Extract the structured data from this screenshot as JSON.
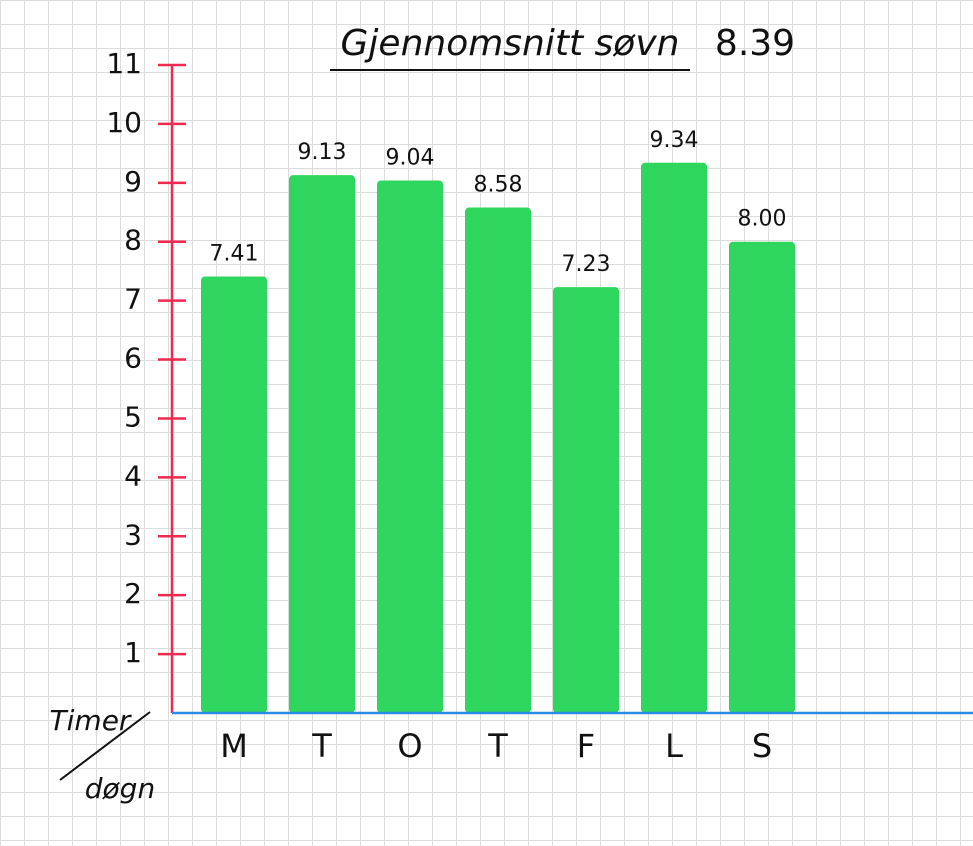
{
  "chart_data": {
    "type": "bar",
    "title": "Gjennomsnitt søvn",
    "title_value": "8.39",
    "unit_label": [
      "Timer",
      "døgn"
    ],
    "categories": [
      "M",
      "T",
      "O",
      "T",
      "F",
      "L",
      "S"
    ],
    "values": [
      7.41,
      9.13,
      9.04,
      8.58,
      7.23,
      9.34,
      8.0
    ],
    "value_labels": [
      "7.41",
      "9.13",
      "9.04",
      "8.58",
      "7.23",
      "9.34",
      "8.00"
    ],
    "color": "#2ed65d",
    "axis_color": "#f0294f",
    "baseline_color": "#2a8ce6",
    "ylim": [
      0,
      11
    ],
    "yticks": [
      1,
      2,
      3,
      4,
      5,
      6,
      7,
      8,
      9,
      10,
      11
    ]
  }
}
